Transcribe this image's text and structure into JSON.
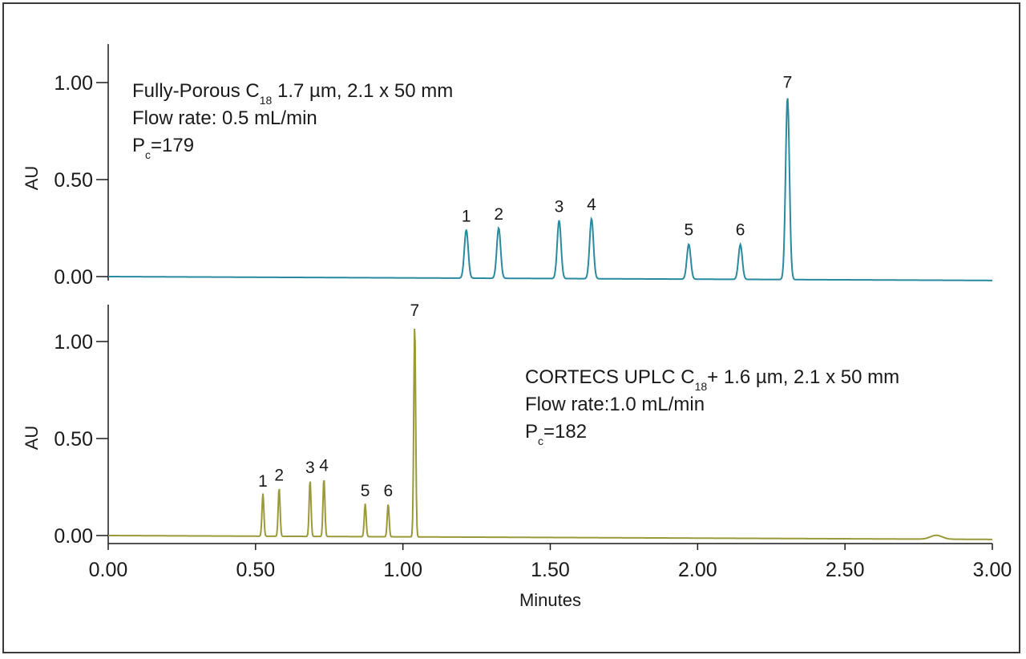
{
  "chart_data": [
    {
      "type": "line",
      "ylabel": "AU",
      "yticks": [
        "0.00",
        "0.50",
        "1.00"
      ],
      "ylim": [
        0,
        1.2
      ],
      "xlim": [
        0,
        3.0
      ],
      "color": "#2a8aa0",
      "annotation": {
        "line1_pre": "Fully-Porous C",
        "line1_sub": "18",
        "line1_post": " 1.7 µm, 2.1 x 50 mm",
        "line2": "Flow rate: 0.5 mL/min",
        "line3_pre": "P",
        "line3_sub": "c",
        "line3_post": "=179"
      },
      "baseline": {
        "start": 0.0,
        "end": -0.02
      },
      "peaks": [
        {
          "label": "1",
          "rt": 1.215,
          "height": 0.25,
          "width": 0.0065
        },
        {
          "label": "2",
          "rt": 1.325,
          "height": 0.26,
          "width": 0.0065
        },
        {
          "label": "3",
          "rt": 1.53,
          "height": 0.3,
          "width": 0.0065
        },
        {
          "label": "4",
          "rt": 1.64,
          "height": 0.31,
          "width": 0.0065
        },
        {
          "label": "5",
          "rt": 1.97,
          "height": 0.18,
          "width": 0.0065
        },
        {
          "label": "6",
          "rt": 2.145,
          "height": 0.18,
          "width": 0.0065
        },
        {
          "label": "7",
          "rt": 2.305,
          "height": 0.94,
          "width": 0.0065
        }
      ]
    },
    {
      "type": "line",
      "ylabel": "AU",
      "yticks": [
        "0.00",
        "0.50",
        "1.00"
      ],
      "ylim": [
        0,
        1.2
      ],
      "xlim": [
        0,
        3.0
      ],
      "color": "#9b9a3a",
      "annotation": {
        "line1_pre": "CORTECS UPLC C",
        "line1_sub": "18",
        "line1_post": "+ 1.6 µm, 2.1 x 50 mm",
        "line2": "Flow rate:1.0 mL/min",
        "line3_pre": "P",
        "line3_sub": "c",
        "line3_post": "=182"
      },
      "baseline": {
        "start": 0.0,
        "end": -0.02
      },
      "bump": {
        "rt": 2.81,
        "height": 0.02
      },
      "peaks": [
        {
          "label": "1",
          "rt": 0.525,
          "height": 0.22,
          "width": 0.0032
        },
        {
          "label": "2",
          "rt": 0.58,
          "height": 0.25,
          "width": 0.0032
        },
        {
          "label": "3",
          "rt": 0.685,
          "height": 0.29,
          "width": 0.0032
        },
        {
          "label": "4",
          "rt": 0.732,
          "height": 0.3,
          "width": 0.0032
        },
        {
          "label": "5",
          "rt": 0.872,
          "height": 0.17,
          "width": 0.0032
        },
        {
          "label": "6",
          "rt": 0.95,
          "height": 0.17,
          "width": 0.0032
        },
        {
          "label": "7",
          "rt": 1.04,
          "height": 1.1,
          "width": 0.0032
        }
      ]
    }
  ],
  "xaxis": {
    "label": "Minutes",
    "ticks": [
      "0.00",
      "0.50",
      "1.00",
      "1.50",
      "2.00",
      "2.50",
      "3.00"
    ],
    "values": [
      0,
      0.5,
      1.0,
      1.5,
      2.0,
      2.5,
      3.0
    ]
  }
}
